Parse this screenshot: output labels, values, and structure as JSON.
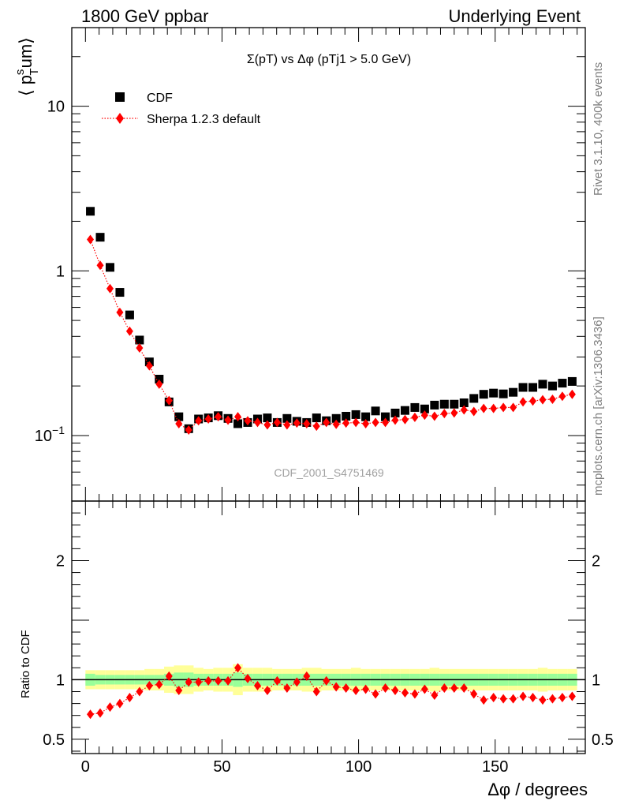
{
  "header": {
    "left": "1800 GeV ppbar",
    "right": "Underlying Event"
  },
  "side_labels": {
    "rivet": "Rivet 3.1.10,  400k events",
    "mcplots": "mcplots.cern.ch [arXiv:1306.3436]"
  },
  "chart_data": {
    "type": "scatter",
    "title": "Σ(pT) vs Δφ (pTj1 > 5.0 GeV)",
    "watermark": "CDF_2001_S4751469",
    "ylabel": "⟨ pTsum⟩",
    "xlabel": "Δφ / degrees",
    "ratio_ylabel": "Ratio to CDF",
    "x_ticks": [
      "0",
      "50",
      "100",
      "150"
    ],
    "main_y_ticks": [
      "10",
      "1",
      "10−1"
    ],
    "ratio_y_ticks": [
      "2",
      "1",
      "0.5"
    ],
    "xlim": [
      -5,
      183
    ],
    "main_ylim": [
      0.04,
      30
    ],
    "ratio_ylim": [
      0.38,
      2.5
    ],
    "x": [
      1.8,
      5.4,
      9,
      12.6,
      16.2,
      19.8,
      23.4,
      27,
      30.6,
      34.2,
      37.8,
      41.4,
      45,
      48.6,
      52.2,
      55.8,
      59.4,
      63,
      66.6,
      70.2,
      73.8,
      77.4,
      81,
      84.6,
      88.2,
      91.8,
      95.4,
      99,
      102.6,
      106.2,
      109.8,
      113.4,
      117,
      120.6,
      124.2,
      127.8,
      131.4,
      135,
      138.6,
      142.2,
      145.8,
      149.4,
      153,
      156.6,
      160.2,
      163.8,
      167.4,
      171,
      174.6,
      178.2
    ],
    "series": [
      {
        "name": "CDF",
        "color": "#000000",
        "marker": "square",
        "values": [
          2.3,
          1.6,
          1.05,
          0.74,
          0.54,
          0.38,
          0.28,
          0.22,
          0.16,
          0.13,
          0.11,
          0.126,
          0.128,
          0.132,
          0.127,
          0.118,
          0.12,
          0.126,
          0.128,
          0.12,
          0.127,
          0.122,
          0.12,
          0.128,
          0.123,
          0.127,
          0.131,
          0.134,
          0.13,
          0.141,
          0.13,
          0.137,
          0.142,
          0.148,
          0.145,
          0.153,
          0.155,
          0.155,
          0.158,
          0.168,
          0.178,
          0.181,
          0.179,
          0.183,
          0.196,
          0.196,
          0.205,
          0.2,
          0.208,
          0.213
        ]
      },
      {
        "name": "Sherpa 1.2.3 default",
        "color": "#ff0000",
        "marker": "diamond",
        "line": "dotted",
        "values": [
          1.55,
          1.08,
          0.78,
          0.56,
          0.43,
          0.34,
          0.265,
          0.205,
          0.163,
          0.118,
          0.108,
          0.123,
          0.126,
          0.13,
          0.124,
          0.13,
          0.123,
          0.12,
          0.116,
          0.12,
          0.116,
          0.119,
          0.118,
          0.114,
          0.12,
          0.117,
          0.119,
          0.12,
          0.118,
          0.12,
          0.12,
          0.124,
          0.125,
          0.129,
          0.133,
          0.131,
          0.136,
          0.137,
          0.143,
          0.14,
          0.146,
          0.146,
          0.148,
          0.148,
          0.16,
          0.162,
          0.165,
          0.166,
          0.173,
          0.178
        ]
      }
    ],
    "ratio": {
      "reference": 1,
      "sherpa_over_cdf": [
        0.71,
        0.72,
        0.77,
        0.8,
        0.85,
        0.9,
        0.95,
        0.96,
        1.03,
        0.91,
        0.98,
        0.98,
        0.99,
        0.99,
        0.99,
        1.1,
        1.01,
        0.95,
        0.91,
        0.99,
        0.93,
        0.98,
        1.03,
        0.9,
        0.99,
        0.94,
        0.93,
        0.91,
        0.92,
        0.88,
        0.93,
        0.91,
        0.89,
        0.88,
        0.92,
        0.87,
        0.93,
        0.93,
        0.93,
        0.88,
        0.83,
        0.85,
        0.84,
        0.84,
        0.86,
        0.85,
        0.83,
        0.84,
        0.85,
        0.86
      ],
      "stat_band": [
        0.05,
        0.04,
        0.04,
        0.04,
        0.04,
        0.04,
        0.04,
        0.04,
        0.05,
        0.06,
        0.06,
        0.05,
        0.05,
        0.05,
        0.05,
        0.06,
        0.05,
        0.05,
        0.05,
        0.05,
        0.05,
        0.05,
        0.05,
        0.05,
        0.05,
        0.05,
        0.05,
        0.05,
        0.05,
        0.05,
        0.05,
        0.05,
        0.05,
        0.05,
        0.05,
        0.05,
        0.05,
        0.05,
        0.05,
        0.05,
        0.05,
        0.05,
        0.05,
        0.05,
        0.05,
        0.05,
        0.05,
        0.05,
        0.05,
        0.05
      ],
      "total_band": [
        0.08,
        0.08,
        0.08,
        0.08,
        0.08,
        0.08,
        0.09,
        0.09,
        0.11,
        0.12,
        0.12,
        0.1,
        0.09,
        0.1,
        0.1,
        0.13,
        0.1,
        0.1,
        0.1,
        0.09,
        0.09,
        0.09,
        0.1,
        0.1,
        0.09,
        0.09,
        0.09,
        0.1,
        0.09,
        0.09,
        0.09,
        0.09,
        0.09,
        0.09,
        0.09,
        0.1,
        0.09,
        0.09,
        0.09,
        0.09,
        0.09,
        0.09,
        0.09,
        0.09,
        0.09,
        0.09,
        0.1,
        0.09,
        0.09,
        0.09
      ]
    }
  }
}
